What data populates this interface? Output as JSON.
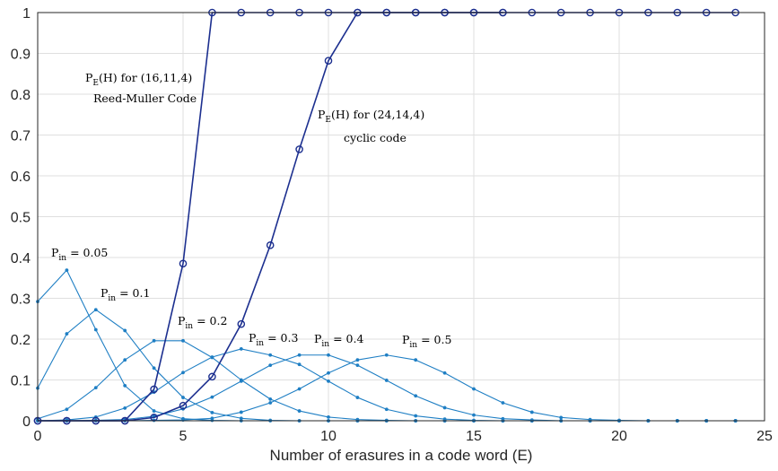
{
  "chart_data": {
    "type": "line",
    "title": "",
    "xlabel": "Number of erasures in a code word (E)",
    "ylabel": "",
    "xlim": [
      0,
      25
    ],
    "ylim": [
      0,
      1
    ],
    "xticks": [
      "0",
      "5",
      "10",
      "15",
      "20",
      "25"
    ],
    "yticks": [
      "0",
      "0.1",
      "0.2",
      "0.3",
      "0.4",
      "0.5",
      "0.6",
      "0.7",
      "0.8",
      "0.9",
      "1"
    ],
    "grid": true,
    "colors": {
      "pin": "#1f7fc4",
      "pe": "#1c2f8f"
    },
    "annotations": {
      "rm": {
        "line1_pre": "P",
        "line1_sub": "E",
        "line1_post": "(H) for (16,11,4)",
        "line2": "Reed-Muller Code"
      },
      "cyc": {
        "line1_pre": "P",
        "line1_sub": "E",
        "line1_post": "(H) for (24,14,4)",
        "line2": "cyclic code"
      }
    },
    "series": [
      {
        "label_pre": "P",
        "label_sub": "in",
        "label_post": " = 0.05",
        "style": "pin",
        "x": [
          0,
          1,
          2,
          3,
          4,
          5,
          6,
          7,
          8,
          9,
          10,
          11,
          12,
          13,
          14,
          15,
          16,
          17,
          18,
          19,
          20,
          21,
          22,
          23,
          24
        ],
        "y": [
          0.292,
          0.369,
          0.223,
          0.086,
          0.024,
          0.005,
          0.001,
          0,
          0,
          0,
          0,
          0,
          0,
          0,
          0,
          0,
          0,
          0,
          0,
          0,
          0,
          0,
          0,
          0,
          0
        ]
      },
      {
        "label_pre": "P",
        "label_sub": "in",
        "label_post": " = 0.1",
        "style": "pin",
        "x": [
          0,
          1,
          2,
          3,
          4,
          5,
          6,
          7,
          8,
          9,
          10,
          11,
          12,
          13,
          14,
          15,
          16,
          17,
          18,
          19,
          20,
          21,
          22,
          23,
          24
        ],
        "y": [
          0.08,
          0.213,
          0.272,
          0.221,
          0.129,
          0.057,
          0.02,
          0.006,
          0.001,
          0,
          0,
          0,
          0,
          0,
          0,
          0,
          0,
          0,
          0,
          0,
          0,
          0,
          0,
          0,
          0
        ]
      },
      {
        "label_pre": "P",
        "label_sub": "in",
        "label_post": " = 0.2",
        "style": "pin",
        "x": [
          0,
          1,
          2,
          3,
          4,
          5,
          6,
          7,
          8,
          9,
          10,
          11,
          12,
          13,
          14,
          15,
          16,
          17,
          18,
          19,
          20,
          21,
          22,
          23,
          24
        ],
        "y": [
          0.005,
          0.028,
          0.081,
          0.149,
          0.196,
          0.196,
          0.155,
          0.1,
          0.053,
          0.024,
          0.009,
          0.003,
          0.001,
          0,
          0,
          0,
          0,
          0,
          0,
          0,
          0,
          0,
          0,
          0,
          0
        ]
      },
      {
        "label_pre": "P",
        "label_sub": "in",
        "label_post": " = 0.3",
        "style": "pin",
        "x": [
          0,
          1,
          2,
          3,
          4,
          5,
          6,
          7,
          8,
          9,
          10,
          11,
          12,
          13,
          14,
          15,
          16,
          17,
          18,
          19,
          20,
          21,
          22,
          23,
          24
        ],
        "y": [
          0,
          0.002,
          0.009,
          0.031,
          0.07,
          0.118,
          0.156,
          0.176,
          0.161,
          0.138,
          0.097,
          0.057,
          0.028,
          0.012,
          0.004,
          0.001,
          0,
          0,
          0,
          0,
          0,
          0,
          0,
          0,
          0
        ]
      },
      {
        "label_pre": "P",
        "label_sub": "in",
        "label_post": " = 0.4",
        "style": "pin",
        "x": [
          0,
          1,
          2,
          3,
          4,
          5,
          6,
          7,
          8,
          9,
          10,
          11,
          12,
          13,
          14,
          15,
          16,
          17,
          18,
          19,
          20,
          21,
          22,
          23,
          24
        ],
        "y": [
          0,
          0,
          0.001,
          0.003,
          0.011,
          0.029,
          0.058,
          0.097,
          0.136,
          0.161,
          0.161,
          0.136,
          0.099,
          0.061,
          0.032,
          0.014,
          0.005,
          0.002,
          0,
          0,
          0,
          0,
          0,
          0,
          0
        ]
      },
      {
        "label_pre": "P",
        "label_sub": "in",
        "label_post": " = 0.5",
        "style": "pin",
        "x": [
          0,
          1,
          2,
          3,
          4,
          5,
          6,
          7,
          8,
          9,
          10,
          11,
          12,
          13,
          14,
          15,
          16,
          17,
          18,
          19,
          20,
          21,
          22,
          23,
          24
        ],
        "y": [
          0,
          0,
          0,
          0,
          0.001,
          0.002,
          0.006,
          0.021,
          0.044,
          0.078,
          0.117,
          0.149,
          0.161,
          0.149,
          0.117,
          0.078,
          0.044,
          0.021,
          0.008,
          0.003,
          0.001,
          0,
          0,
          0,
          0
        ]
      },
      {
        "label_pre": "",
        "label_sub": "",
        "label_post": "",
        "style": "pe",
        "ref": "rm",
        "x": [
          0,
          1,
          2,
          3,
          4,
          5,
          6,
          7,
          8,
          9,
          10,
          11,
          12,
          13,
          14,
          15,
          16
        ],
        "y": [
          0,
          0,
          0,
          0,
          0.077,
          0.385,
          1,
          1,
          1,
          1,
          1,
          1,
          1,
          1,
          1,
          1,
          1
        ]
      },
      {
        "label_pre": "",
        "label_sub": "",
        "label_post": "",
        "style": "pe",
        "ref": "cyc",
        "x": [
          0,
          1,
          2,
          3,
          4,
          5,
          6,
          7,
          8,
          9,
          10,
          11,
          12,
          13,
          14,
          15,
          16,
          17,
          18,
          19,
          20,
          21,
          22,
          23,
          24
        ],
        "y": [
          0,
          0,
          0,
          0,
          0.008,
          0.037,
          0.108,
          0.237,
          0.43,
          0.665,
          0.882,
          1,
          1,
          1,
          1,
          1,
          1,
          1,
          1,
          1,
          1,
          1,
          1,
          1,
          1
        ]
      }
    ]
  }
}
